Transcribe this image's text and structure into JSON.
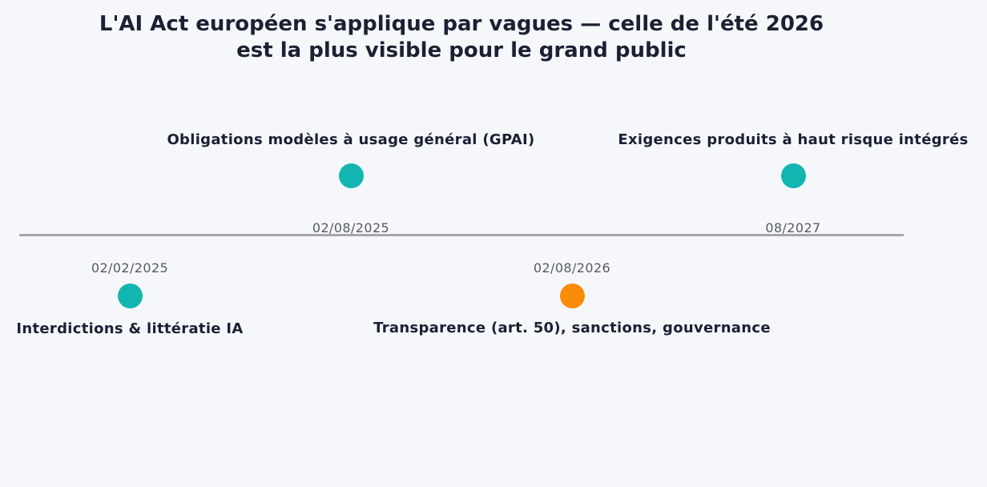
{
  "title_line1": "L'AI Act européen s'applique par vagues — celle de l'été 2026",
  "title_line2": "est la plus visible pour le grand public",
  "colors": {
    "milestone_default": "#13b5b1",
    "milestone_highlight": "#fb8c0a",
    "axis": "#a3a6ad"
  },
  "milestones": [
    {
      "date": "02/02/2025",
      "label": "Interdictions & littératie IA",
      "highlight": false
    },
    {
      "date": "02/08/2025",
      "label": "Obligations modèles à usage général (GPAI)",
      "highlight": false
    },
    {
      "date": "02/08/2026",
      "label": "Transparence (art. 50), sanctions, gouvernance",
      "highlight": true
    },
    {
      "date": "08/2027",
      "label": "Exigences produits à haut risque intégrés",
      "highlight": false
    }
  ]
}
